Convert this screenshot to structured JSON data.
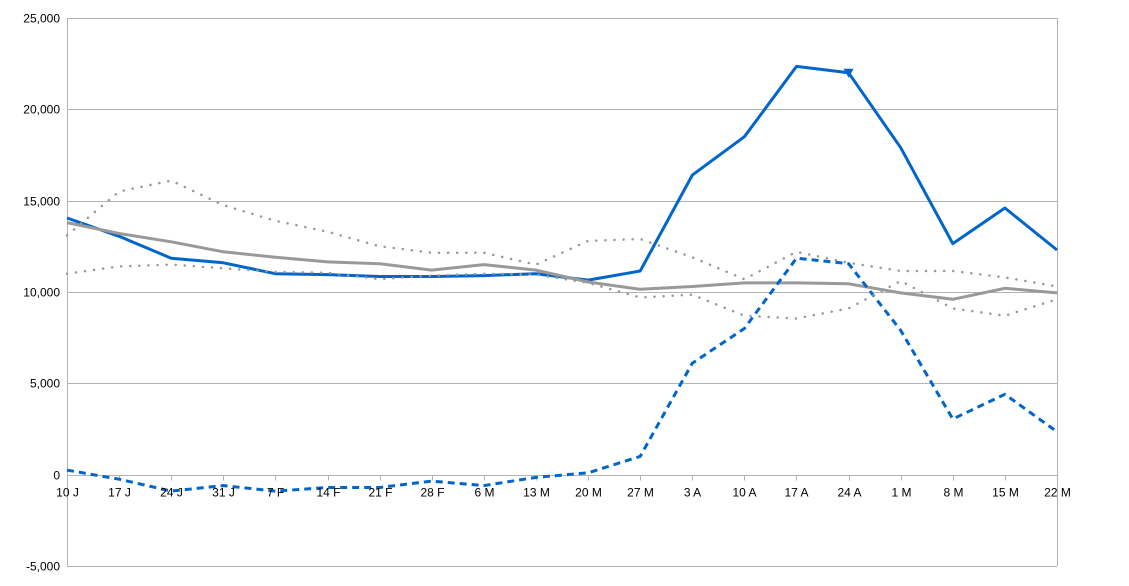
{
  "chart_data": {
    "type": "line",
    "title": "",
    "xlabel": "",
    "ylabel": "",
    "categories": [
      "10 J",
      "17 J",
      "24 J",
      "31 J",
      "7 F",
      "14 F",
      "21 F",
      "28 F",
      "6 M",
      "13 M",
      "20 M",
      "27 M",
      "3 A",
      "10 A",
      "17 A",
      "24 A",
      "1 M",
      "8 M",
      "15 M",
      "22 M"
    ],
    "ylim": [
      -5000,
      25000
    ],
    "yticks": [
      -5000,
      0,
      5000,
      10000,
      15000,
      20000,
      25000
    ],
    "ytick_labels": [
      "-5,000",
      "0",
      "5,000",
      "10,000",
      "15,000",
      "20,000",
      "25,000"
    ],
    "grid": true,
    "legend": "none",
    "series": [
      {
        "values": [
          14050,
          13050,
          11850,
          11600,
          11000,
          10950,
          10850,
          10850,
          10900,
          11000,
          10650,
          11150,
          16400,
          18500,
          22350,
          22000,
          17900,
          12650,
          14600,
          12300
        ],
        "color": "#0066cc",
        "style": "solid",
        "width": 3
      },
      {
        "values": [
          13800,
          13200,
          12750,
          12200,
          11900,
          11650,
          11550,
          11200,
          11500,
          11200,
          10550,
          10150,
          10300,
          10500,
          10500,
          10450,
          9950,
          9600,
          10200,
          9950
        ],
        "color": "#999999",
        "style": "solid",
        "width": 3
      },
      {
        "values": [
          250,
          -250,
          -900,
          -600,
          -900,
          -700,
          -700,
          -350,
          -600,
          -150,
          100,
          1000,
          6100,
          8000,
          11850,
          11550,
          7900,
          3050,
          4400,
          2350
        ],
        "color": "#0066cc",
        "style": "dash",
        "width": 3
      },
      {
        "values": [
          13100,
          15500,
          16100,
          14750,
          13900,
          13300,
          12500,
          12150,
          12150,
          11500,
          12800,
          12900,
          11900,
          10700,
          12200,
          11600,
          11150,
          11150,
          10800,
          10300
        ],
        "color": "#999999",
        "style": "dot",
        "width": 2.5
      },
      {
        "values": [
          11000,
          11400,
          11500,
          11300,
          11100,
          11050,
          10700,
          10900,
          11000,
          10950,
          10500,
          9700,
          9850,
          8700,
          8550,
          9100,
          10600,
          9100,
          8700,
          9600
        ],
        "color": "#999999",
        "style": "dot",
        "width": 2.5
      }
    ],
    "markers": [
      {
        "series": 0,
        "category": "24 A",
        "shape": "triangle-down"
      }
    ]
  }
}
